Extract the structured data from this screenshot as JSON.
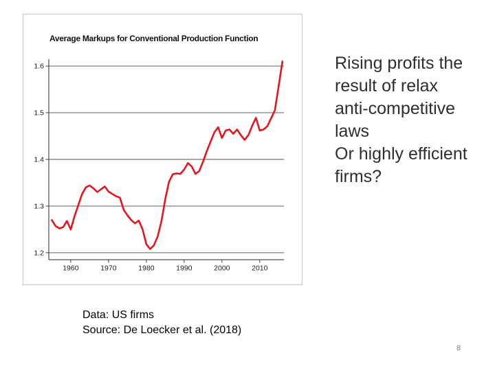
{
  "slide": {
    "page_number": "8",
    "background_color": "#ffffff"
  },
  "commentary": {
    "lines": [
      "Rising profits the",
      "result of relax",
      "anti-competitive",
      "laws",
      "Or highly efficient",
      "firms?"
    ],
    "full_text": "Rising profits the result of relax anti-competitive laws Or highly efficient firms?"
  },
  "caption": {
    "lines": [
      "Data: US firms",
      "Source: De Loecker et al. (2018)"
    ]
  },
  "chart_data": {
    "type": "line",
    "title": "Average Markups for Conventional Production Function",
    "xlabel": "",
    "ylabel": "",
    "x": [
      1955,
      1956,
      1957,
      1958,
      1959,
      1960,
      1961,
      1962,
      1963,
      1964,
      1965,
      1966,
      1967,
      1968,
      1969,
      1970,
      1971,
      1972,
      1973,
      1974,
      1975,
      1976,
      1977,
      1978,
      1979,
      1980,
      1981,
      1982,
      1983,
      1984,
      1985,
      1986,
      1987,
      1988,
      1989,
      1990,
      1991,
      1992,
      1993,
      1994,
      1995,
      1996,
      1997,
      1998,
      1999,
      2000,
      2001,
      2002,
      2003,
      2004,
      2005,
      2006,
      2007,
      2008,
      2009,
      2010,
      2011,
      2012,
      2013,
      2014,
      2015,
      2016
    ],
    "values": [
      1.27,
      1.257,
      1.252,
      1.255,
      1.268,
      1.25,
      1.278,
      1.302,
      1.326,
      1.34,
      1.344,
      1.338,
      1.33,
      1.336,
      1.342,
      1.331,
      1.326,
      1.321,
      1.318,
      1.292,
      1.28,
      1.27,
      1.263,
      1.269,
      1.25,
      1.218,
      1.208,
      1.216,
      1.235,
      1.268,
      1.315,
      1.352,
      1.368,
      1.37,
      1.369,
      1.378,
      1.392,
      1.385,
      1.369,
      1.375,
      1.395,
      1.418,
      1.438,
      1.458,
      1.469,
      1.446,
      1.462,
      1.464,
      1.455,
      1.464,
      1.452,
      1.442,
      1.452,
      1.472,
      1.489,
      1.462,
      1.464,
      1.471,
      1.488,
      1.505,
      1.557,
      1.61
    ],
    "xticks": [
      1960,
      1970,
      1980,
      1990,
      2000,
      2010
    ],
    "yticks": [
      1.2,
      1.3,
      1.4,
      1.5,
      1.6
    ],
    "xlim": [
      1954.2,
      2016.4
    ],
    "ylim": [
      1.185,
      1.615
    ],
    "grid": "horizontal",
    "legend": "none",
    "line_color": "#e8141b",
    "gridline_color": "#8a8a8a",
    "axis_color": "#4d4d4d",
    "tick_label_color": "#1a1a1a"
  }
}
